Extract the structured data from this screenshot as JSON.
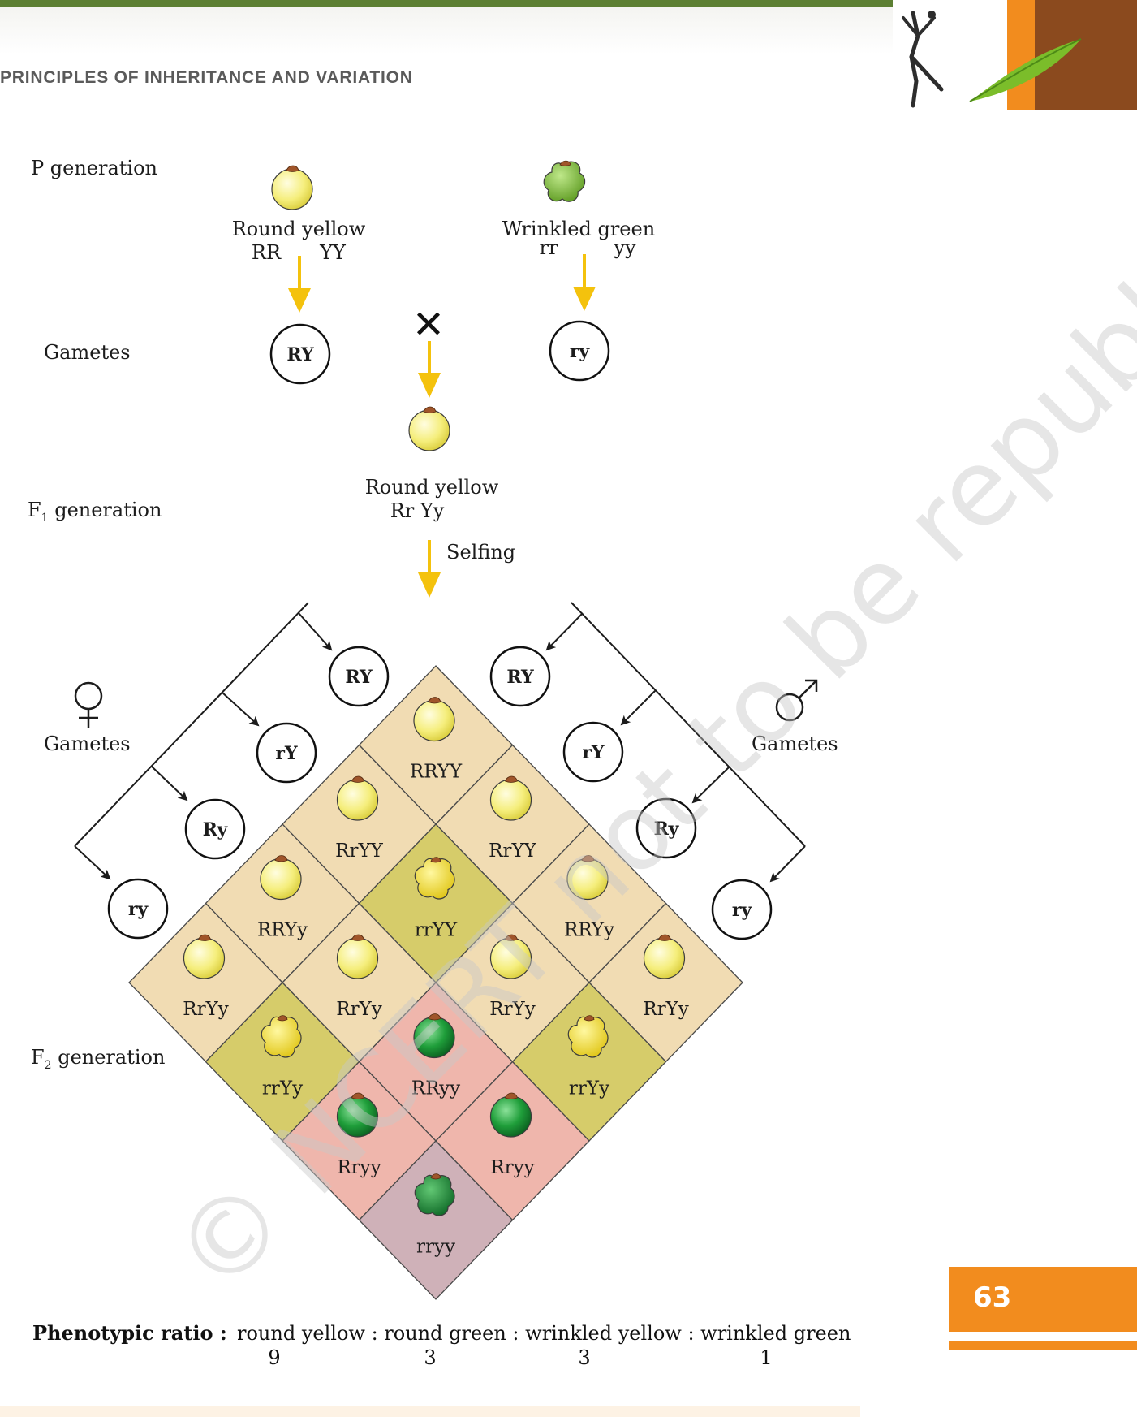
{
  "header": {
    "section_title": "PRINCIPLES OF INHERITANCE AND VARIATION",
    "page_number": "63"
  },
  "colors": {
    "arrow": "#f4c20d",
    "cell_round_yellow": "#f1dcb3",
    "cell_wrinkled_yellow": "#d6cc6a",
    "cell_round_green": "#efb6ac",
    "cell_wrinkled_green": "#cfb1b8",
    "seed_yellow": "#f3ec7a",
    "seed_green": "#1f9e3a",
    "header_green": "#5c7f33",
    "accent_orange": "#f28c1e"
  },
  "diagram": {
    "labels": {
      "p_generation": "P generation",
      "gametes": "Gametes",
      "f1_generation": "F",
      "f1_sub": "1",
      "f1_rest": " generation",
      "f2_generation": "F",
      "f2_sub": "2",
      "f2_rest": " generation",
      "gametes_female": "Gametes",
      "gametes_male": "Gametes",
      "selfing": "Selfing",
      "cross": "✕"
    },
    "parent_left": {
      "phenotype": "Round yellow",
      "allele_1": "RR",
      "allele_2": "YY",
      "gamete": "RY"
    },
    "parent_right": {
      "phenotype": "Wrinkled green",
      "allele_1": "rr",
      "allele_2": "yy",
      "gamete": "ry"
    },
    "f1": {
      "phenotype": "Round yellow",
      "genotype": "Rr Yy"
    },
    "female_gametes": [
      "RY",
      "rY",
      "Ry",
      "ry"
    ],
    "male_gametes": [
      "RY",
      "rY",
      "Ry",
      "ry"
    ],
    "f2_cells": [
      {
        "genotype": "RRYY",
        "phenotype": "round-yellow"
      },
      {
        "genotype": "RrYY",
        "phenotype": "round-yellow"
      },
      {
        "genotype": "RrYY",
        "phenotype": "round-yellow"
      },
      {
        "genotype": "RRYy",
        "phenotype": "round-yellow"
      },
      {
        "genotype": "rrYY",
        "phenotype": "wrinkled-yellow"
      },
      {
        "genotype": "RRYy",
        "phenotype": "round-yellow"
      },
      {
        "genotype": "RrYy",
        "phenotype": "round-yellow"
      },
      {
        "genotype": "RrYy",
        "phenotype": "round-yellow"
      },
      {
        "genotype": "RrYy",
        "phenotype": "round-yellow"
      },
      {
        "genotype": "RrYy",
        "phenotype": "round-yellow"
      },
      {
        "genotype": "rrYy",
        "phenotype": "wrinkled-yellow"
      },
      {
        "genotype": "RRyy",
        "phenotype": "round-green"
      },
      {
        "genotype": "rrYy",
        "phenotype": "wrinkled-yellow"
      },
      {
        "genotype": "Rryy",
        "phenotype": "round-green"
      },
      {
        "genotype": "Rryy",
        "phenotype": "round-green"
      },
      {
        "genotype": "rryy",
        "phenotype": "wrinkled-green"
      }
    ]
  },
  "ratio": {
    "label": "Phenotypic ratio :",
    "text": "round yellow : round green : wrinkled yellow : wrinkled green",
    "values": [
      "9",
      "3",
      "3",
      "1"
    ]
  },
  "watermark": "© NCERT not to be republished"
}
